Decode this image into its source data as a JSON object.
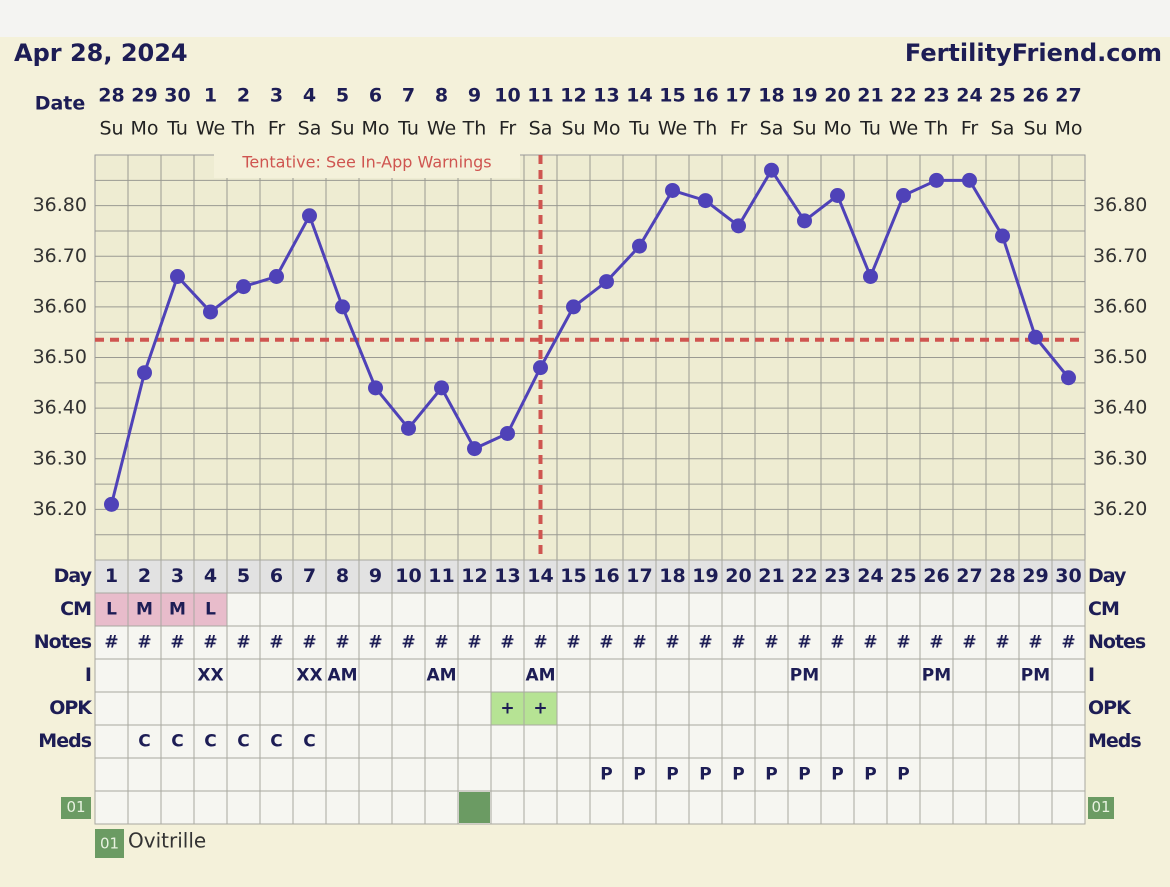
{
  "chart_data": {
    "type": "line",
    "title": "Apr 28, 2024",
    "brand": "FertilityFriend.com",
    "x_label": "Date",
    "categories": [
      "28",
      "29",
      "30",
      "1",
      "2",
      "3",
      "4",
      "5",
      "6",
      "7",
      "8",
      "9",
      "10",
      "11",
      "12",
      "13",
      "14",
      "15",
      "16",
      "17",
      "18",
      "19",
      "20",
      "21",
      "22",
      "23",
      "24",
      "25",
      "26",
      "27"
    ],
    "weekdays": [
      "Su",
      "Mo",
      "Tu",
      "We",
      "Th",
      "Fr",
      "Sa",
      "Su",
      "Mo",
      "Tu",
      "We",
      "Th",
      "Fr",
      "Sa",
      "Su",
      "Mo",
      "Tu",
      "We",
      "Th",
      "Fr",
      "Sa",
      "Su",
      "Mo",
      "Tu",
      "We",
      "Th",
      "Fr",
      "Sa",
      "Su",
      "Mo"
    ],
    "values": [
      36.21,
      36.47,
      36.66,
      36.59,
      36.64,
      36.66,
      36.78,
      36.6,
      36.44,
      36.36,
      36.44,
      36.32,
      36.35,
      36.48,
      36.6,
      36.65,
      36.72,
      36.83,
      36.81,
      36.76,
      36.87,
      36.77,
      36.82,
      36.66,
      36.82,
      36.85,
      36.85,
      36.74,
      36.54,
      36.46
    ],
    "color": "#4f42b8",
    "ylim": [
      36.1,
      36.9
    ],
    "yticks": [
      {
        "value": 36.2,
        "label": "36.20"
      },
      {
        "value": 36.3,
        "label": "36.30"
      },
      {
        "value": 36.4,
        "label": "36.40"
      },
      {
        "value": 36.5,
        "label": "36.50"
      },
      {
        "value": 36.6,
        "label": "36.60"
      },
      {
        "value": 36.7,
        "label": "36.70"
      },
      {
        "value": 36.8,
        "label": "36.80"
      }
    ],
    "minor_yticks": [
      36.15,
      36.25,
      36.35,
      36.45,
      36.55,
      36.65,
      36.75,
      36.85
    ],
    "grid": true,
    "coverline": 36.535,
    "ovulation_day": 14,
    "reference_color": "#cf5550",
    "annotation": "Tentative: See In-App Warnings",
    "table": {
      "rows": [
        {
          "label": "Day",
          "right_label": "Day",
          "header": true,
          "cells": [
            1,
            2,
            3,
            4,
            5,
            6,
            7,
            8,
            9,
            10,
            11,
            12,
            13,
            14,
            15,
            16,
            17,
            18,
            19,
            20,
            21,
            22,
            23,
            24,
            25,
            26,
            27,
            28,
            29,
            30
          ]
        },
        {
          "label": "CM",
          "right_label": "CM",
          "cell_color": "#e8bccb",
          "cells": [
            "L",
            "M",
            "M",
            "L",
            null,
            null,
            null,
            null,
            null,
            null,
            null,
            null,
            null,
            null,
            null,
            null,
            null,
            null,
            null,
            null,
            null,
            null,
            null,
            null,
            null,
            null,
            null,
            null,
            null,
            null
          ]
        },
        {
          "label": "Notes",
          "right_label": "Notes",
          "cells": [
            "#",
            "#",
            "#",
            "#",
            "#",
            "#",
            "#",
            "#",
            "#",
            "#",
            "#",
            "#",
            "#",
            "#",
            "#",
            "#",
            "#",
            "#",
            "#",
            "#",
            "#",
            "#",
            "#",
            "#",
            "#",
            "#",
            "#",
            "#",
            "#",
            "#"
          ]
        },
        {
          "label": "I",
          "right_label": "I",
          "cells": [
            null,
            null,
            null,
            "XX",
            null,
            null,
            "XX",
            "AM",
            null,
            null,
            "AM",
            null,
            null,
            "AM",
            null,
            null,
            null,
            null,
            null,
            null,
            null,
            "PM",
            null,
            null,
            null,
            "PM",
            null,
            null,
            "PM",
            null
          ]
        },
        {
          "label": "OPK",
          "right_label": "OPK",
          "cell_color": "#b6e394",
          "cells": [
            null,
            null,
            null,
            null,
            null,
            null,
            null,
            null,
            null,
            null,
            null,
            null,
            "+",
            "+",
            null,
            null,
            null,
            null,
            null,
            null,
            null,
            null,
            null,
            null,
            null,
            null,
            null,
            null,
            null,
            null
          ]
        },
        {
          "label": "Meds",
          "right_label": "Meds",
          "cells": [
            null,
            "C",
            "C",
            "C",
            "C",
            "C",
            "C",
            null,
            null,
            null,
            null,
            null,
            null,
            null,
            null,
            null,
            null,
            null,
            null,
            null,
            null,
            null,
            null,
            null,
            null,
            null,
            null,
            null,
            null,
            null
          ]
        },
        {
          "label": null,
          "right_label": null,
          "cells": [
            null,
            null,
            null,
            null,
            null,
            null,
            null,
            null,
            null,
            null,
            null,
            null,
            null,
            null,
            null,
            "P",
            "P",
            "P",
            "P",
            "P",
            "P",
            "P",
            "P",
            "P",
            "P",
            null,
            null,
            null,
            null,
            null
          ]
        },
        {
          "label": "01",
          "right_label": "01",
          "badge_color": "#6b9b63",
          "marked_days": [
            12
          ],
          "cells": [
            null,
            null,
            null,
            null,
            null,
            null,
            null,
            null,
            null,
            null,
            null,
            null,
            null,
            null,
            null,
            null,
            null,
            null,
            null,
            null,
            null,
            null,
            null,
            null,
            null,
            null,
            null,
            null,
            null,
            null
          ]
        }
      ]
    },
    "legend": {
      "code": "01",
      "name": "Ovitrille",
      "color": "#6b9b63"
    }
  }
}
